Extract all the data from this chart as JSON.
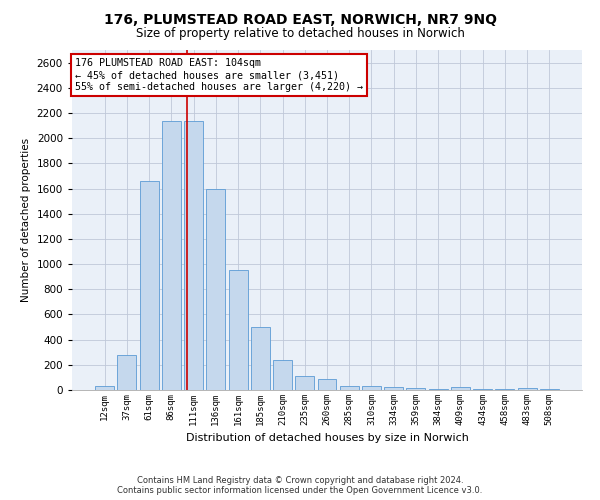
{
  "title": "176, PLUMSTEAD ROAD EAST, NORWICH, NR7 9NQ",
  "subtitle": "Size of property relative to detached houses in Norwich",
  "xlabel": "Distribution of detached houses by size in Norwich",
  "ylabel": "Number of detached properties",
  "footer_line1": "Contains HM Land Registry data © Crown copyright and database right 2024.",
  "footer_line2": "Contains public sector information licensed under the Open Government Licence v3.0.",
  "categories": [
    "12sqm",
    "37sqm",
    "61sqm",
    "86sqm",
    "111sqm",
    "136sqm",
    "161sqm",
    "185sqm",
    "210sqm",
    "235sqm",
    "260sqm",
    "285sqm",
    "310sqm",
    "334sqm",
    "359sqm",
    "384sqm",
    "409sqm",
    "434sqm",
    "458sqm",
    "483sqm",
    "508sqm"
  ],
  "values": [
    30,
    280,
    1660,
    2140,
    2140,
    1600,
    950,
    500,
    240,
    110,
    90,
    35,
    35,
    20,
    15,
    5,
    20,
    5,
    5,
    15,
    5
  ],
  "bar_color": "#c5d8ed",
  "bar_edge_color": "#5b9bd5",
  "grid_color": "#c0c8d8",
  "background_color": "#eaf0f8",
  "annotation_line1": "176 PLUMSTEAD ROAD EAST: 104sqm",
  "annotation_line2": "← 45% of detached houses are smaller (3,451)",
  "annotation_line3": "55% of semi-detached houses are larger (4,220) →",
  "annotation_box_color": "#ffffff",
  "annotation_border_color": "#cc0000",
  "vline_x": 3.72,
  "vline_color": "#cc0000",
  "ylim": [
    0,
    2700
  ],
  "yticks": [
    0,
    200,
    400,
    600,
    800,
    1000,
    1200,
    1400,
    1600,
    1800,
    2000,
    2200,
    2400,
    2600
  ]
}
